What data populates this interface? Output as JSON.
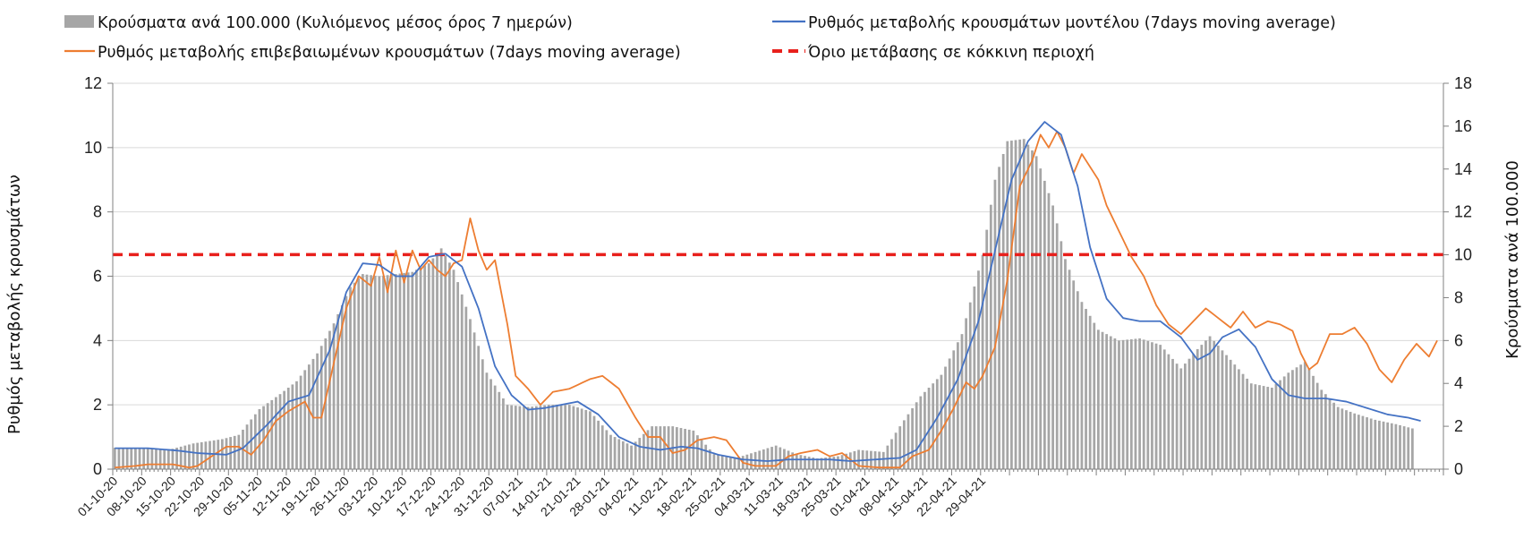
{
  "chart_data": {
    "type": "bar+line",
    "legend": {
      "bars_label": "Κρούσματα ανά 100.000 (Κυλιόμενος μέσος όρος 7 ημερών)",
      "model_label": "Ρυθμός μεταβολής κρουσμάτων μοντέλου (7days moving average)",
      "confirmed_label": "Ρυθμός μεταβολής επιβεβαιωμένων κρουσμάτων (7days moving average)",
      "threshold_label": "Όριο μετάβασης σε κόκκινη περιοχή",
      "placement": "top"
    },
    "ylabel_left": "Ρυθμός μεταβολής κρουσμάτων",
    "ylabel_right": "Κρούσματα ανά 100.000",
    "ylim_left": [
      0,
      12
    ],
    "ylim_right": [
      0,
      18
    ],
    "yticks_left": [
      "0",
      "2",
      "4",
      "6",
      "8",
      "10",
      "12"
    ],
    "yticks_right": [
      "0",
      "2",
      "4",
      "6",
      "8",
      "10",
      "12",
      "14",
      "16",
      "18"
    ],
    "x_start": "01-10-20",
    "x_tick_labels": [
      "01-10-20",
      "08-10-20",
      "15-10-20",
      "22-10-20",
      "29-10-20",
      "05-11-20",
      "12-11-20",
      "19-11-20",
      "26-11-20",
      "03-12-20",
      "10-12-20",
      "17-12-20",
      "24-12-20",
      "31-12-20",
      "07-01-21",
      "14-01-21",
      "21-01-21",
      "28-01-21",
      "04-02-21",
      "11-02-21",
      "18-02-21",
      "25-02-21",
      "04-03-21",
      "11-03-21",
      "18-03-21",
      "25-03-21",
      "01-04-21",
      "08-04-21",
      "15-04-21",
      "22-04-21",
      "29-04-21"
    ],
    "grid": true,
    "threshold_left": 6.67,
    "colors": {
      "bars": "#a6a6a6",
      "model": "#4472c4",
      "confirmed": "#ed7d31",
      "threshold": "#e8201c",
      "grid": "#d9d9d9"
    },
    "series": [
      {
        "name": "Κρούσματα ανά 100.000 (Κυλιόμενος μέσος όρος 7 ημερών)",
        "axis": "right",
        "kind": "bar",
        "keypoints": [
          [
            0,
            1.0
          ],
          [
            6,
            1.0
          ],
          [
            13,
            0.9
          ],
          [
            19,
            1.2
          ],
          [
            26,
            1.4
          ],
          [
            30,
            1.6
          ],
          [
            35,
            2.8
          ],
          [
            40,
            3.5
          ],
          [
            44,
            4.1
          ],
          [
            49,
            5.4
          ],
          [
            53,
            6.8
          ],
          [
            57,
            8.5
          ],
          [
            60,
            9.1
          ],
          [
            64,
            9.0
          ],
          [
            68,
            9.1
          ],
          [
            72,
            9.2
          ],
          [
            76,
            9.6
          ],
          [
            79,
            10.3
          ],
          [
            82,
            9.3
          ],
          [
            86,
            7.0
          ],
          [
            90,
            4.5
          ],
          [
            95,
            3.0
          ],
          [
            100,
            2.9
          ],
          [
            105,
            3.0
          ],
          [
            110,
            3.0
          ],
          [
            115,
            2.7
          ],
          [
            120,
            1.6
          ],
          [
            125,
            1.1
          ],
          [
            130,
            2.0
          ],
          [
            135,
            2.0
          ],
          [
            140,
            1.8
          ],
          [
            145,
            0.7
          ],
          [
            150,
            0.5
          ],
          [
            155,
            0.8
          ],
          [
            160,
            1.1
          ],
          [
            165,
            0.7
          ],
          [
            170,
            0.5
          ],
          [
            175,
            0.6
          ],
          [
            180,
            0.9
          ],
          [
            186,
            0.8
          ],
          [
            190,
            2.0
          ],
          [
            195,
            3.4
          ],
          [
            200,
            4.4
          ],
          [
            205,
            6.3
          ],
          [
            210,
            10.0
          ],
          [
            213,
            13.5
          ],
          [
            216,
            15.3
          ],
          [
            220,
            15.4
          ],
          [
            223,
            14.6
          ],
          [
            227,
            12.3
          ],
          [
            230,
            9.8
          ],
          [
            234,
            7.8
          ],
          [
            238,
            6.5
          ],
          [
            243,
            6.0
          ],
          [
            248,
            6.1
          ],
          [
            253,
            5.8
          ],
          [
            258,
            4.7
          ],
          [
            262,
            5.6
          ],
          [
            265,
            6.2
          ],
          [
            270,
            5.1
          ],
          [
            275,
            4.0
          ],
          [
            280,
            3.8
          ],
          [
            284,
            4.5
          ],
          [
            288,
            5.0
          ],
          [
            292,
            3.7
          ],
          [
            296,
            2.9
          ],
          [
            300,
            2.6
          ],
          [
            305,
            2.3
          ],
          [
            310,
            2.1
          ],
          [
            314,
            1.9
          ]
        ]
      },
      {
        "name": "Ρυθμός μεταβολής κρουσμάτων μοντέλου (7days moving average)",
        "axis": "left",
        "kind": "line",
        "keypoints": [
          [
            0,
            0.65
          ],
          [
            8,
            0.65
          ],
          [
            15,
            0.58
          ],
          [
            20,
            0.5
          ],
          [
            27,
            0.45
          ],
          [
            31,
            0.65
          ],
          [
            37,
            1.4
          ],
          [
            42,
            2.1
          ],
          [
            47,
            2.3
          ],
          [
            52,
            3.7
          ],
          [
            56,
            5.5
          ],
          [
            60,
            6.4
          ],
          [
            64,
            6.35
          ],
          [
            68,
            6.0
          ],
          [
            72,
            6.0
          ],
          [
            76,
            6.6
          ],
          [
            80,
            6.7
          ],
          [
            84,
            6.3
          ],
          [
            88,
            5.0
          ],
          [
            92,
            3.2
          ],
          [
            96,
            2.3
          ],
          [
            100,
            1.85
          ],
          [
            104,
            1.9
          ],
          [
            108,
            2.0
          ],
          [
            112,
            2.1
          ],
          [
            117,
            1.7
          ],
          [
            122,
            1.0
          ],
          [
            127,
            0.7
          ],
          [
            132,
            0.6
          ],
          [
            137,
            0.7
          ],
          [
            141,
            0.65
          ],
          [
            146,
            0.45
          ],
          [
            152,
            0.3
          ],
          [
            158,
            0.25
          ],
          [
            163,
            0.3
          ],
          [
            168,
            0.3
          ],
          [
            173,
            0.3
          ],
          [
            178,
            0.25
          ],
          [
            184,
            0.3
          ],
          [
            190,
            0.35
          ],
          [
            194,
            0.6
          ],
          [
            199,
            1.6
          ],
          [
            204,
            2.8
          ],
          [
            209,
            4.6
          ],
          [
            213,
            6.8
          ],
          [
            217,
            9.0
          ],
          [
            221,
            10.2
          ],
          [
            225,
            10.8
          ],
          [
            229,
            10.4
          ],
          [
            233,
            8.8
          ],
          [
            236,
            6.9
          ],
          [
            240,
            5.3
          ],
          [
            244,
            4.7
          ],
          [
            248,
            4.6
          ],
          [
            253,
            4.6
          ],
          [
            258,
            4.1
          ],
          [
            262,
            3.4
          ],
          [
            265,
            3.6
          ],
          [
            268,
            4.1
          ],
          [
            272,
            4.35
          ],
          [
            276,
            3.8
          ],
          [
            280,
            2.8
          ],
          [
            284,
            2.3
          ],
          [
            288,
            2.2
          ],
          [
            293,
            2.2
          ],
          [
            298,
            2.1
          ],
          [
            303,
            1.9
          ],
          [
            308,
            1.7
          ],
          [
            313,
            1.6
          ],
          [
            316,
            1.5
          ]
        ]
      },
      {
        "name": "Ρυθμός μεταβολής επιβεβαιωμένων κρουσμάτων (7days moving average)",
        "axis": "left",
        "kind": "line",
        "keypoints": [
          [
            0,
            0.05
          ],
          [
            5,
            0.1
          ],
          [
            8,
            0.15
          ],
          [
            14,
            0.15
          ],
          [
            18,
            0.05
          ],
          [
            20,
            0.1
          ],
          [
            24,
            0.45
          ],
          [
            27,
            0.7
          ],
          [
            30,
            0.7
          ],
          [
            33,
            0.45
          ],
          [
            36,
            0.9
          ],
          [
            39,
            1.5
          ],
          [
            42,
            1.8
          ],
          [
            46,
            2.1
          ],
          [
            48,
            1.6
          ],
          [
            50,
            1.6
          ],
          [
            53,
            3.3
          ],
          [
            56,
            5.0
          ],
          [
            59,
            6.0
          ],
          [
            62,
            5.7
          ],
          [
            64,
            6.6
          ],
          [
            66,
            5.5
          ],
          [
            68,
            6.8
          ],
          [
            70,
            5.8
          ],
          [
            72,
            6.8
          ],
          [
            74,
            6.2
          ],
          [
            76,
            6.5
          ],
          [
            78,
            6.2
          ],
          [
            80,
            6.0
          ],
          [
            82,
            6.4
          ],
          [
            84,
            6.5
          ],
          [
            86,
            7.8
          ],
          [
            88,
            6.8
          ],
          [
            90,
            6.2
          ],
          [
            92,
            6.5
          ],
          [
            95,
            4.5
          ],
          [
            97,
            2.9
          ],
          [
            100,
            2.5
          ],
          [
            103,
            2.0
          ],
          [
            106,
            2.4
          ],
          [
            110,
            2.5
          ],
          [
            115,
            2.8
          ],
          [
            118,
            2.9
          ],
          [
            122,
            2.5
          ],
          [
            126,
            1.6
          ],
          [
            129,
            1.0
          ],
          [
            132,
            1.0
          ],
          [
            135,
            0.5
          ],
          [
            138,
            0.6
          ],
          [
            141,
            0.9
          ],
          [
            145,
            1.0
          ],
          [
            148,
            0.9
          ],
          [
            152,
            0.2
          ],
          [
            155,
            0.1
          ],
          [
            160,
            0.1
          ],
          [
            163,
            0.4
          ],
          [
            166,
            0.5
          ],
          [
            170,
            0.6
          ],
          [
            173,
            0.4
          ],
          [
            176,
            0.5
          ],
          [
            180,
            0.1
          ],
          [
            185,
            0.05
          ],
          [
            190,
            0.05
          ],
          [
            193,
            0.4
          ],
          [
            197,
            0.6
          ],
          [
            200,
            1.2
          ],
          [
            203,
            1.9
          ],
          [
            206,
            2.7
          ],
          [
            208,
            2.5
          ],
          [
            210,
            2.9
          ],
          [
            213,
            3.8
          ],
          [
            216,
            5.9
          ],
          [
            219,
            8.8
          ],
          [
            222,
            9.6
          ],
          [
            224,
            10.4
          ],
          [
            226,
            10.0
          ],
          [
            228,
            10.5
          ],
          [
            230,
            10.0
          ],
          [
            232,
            9.2
          ],
          [
            234,
            9.8
          ],
          [
            236,
            9.4
          ],
          [
            238,
            9.0
          ],
          [
            240,
            8.2
          ],
          [
            243,
            7.4
          ],
          [
            246,
            6.6
          ],
          [
            249,
            6.0
          ],
          [
            252,
            5.1
          ],
          [
            255,
            4.5
          ],
          [
            258,
            4.2
          ],
          [
            261,
            4.6
          ],
          [
            264,
            5.0
          ],
          [
            267,
            4.7
          ],
          [
            270,
            4.4
          ],
          [
            273,
            4.9
          ],
          [
            276,
            4.4
          ],
          [
            279,
            4.6
          ],
          [
            282,
            4.5
          ],
          [
            285,
            4.3
          ],
          [
            287,
            3.6
          ],
          [
            289,
            3.1
          ],
          [
            291,
            3.3
          ],
          [
            294,
            4.2
          ],
          [
            297,
            4.2
          ],
          [
            300,
            4.4
          ],
          [
            303,
            3.9
          ],
          [
            306,
            3.1
          ],
          [
            309,
            2.7
          ],
          [
            312,
            3.4
          ],
          [
            315,
            3.9
          ],
          [
            318,
            3.5
          ],
          [
            320,
            4.0
          ]
        ]
      }
    ]
  }
}
